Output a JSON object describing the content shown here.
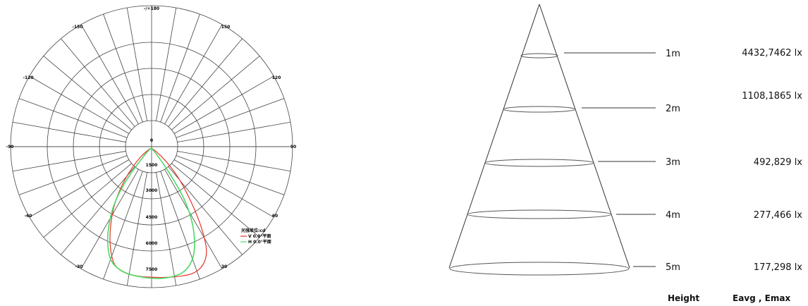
{
  "polar": {
    "top_label": "-/+180",
    "angle_labels": [
      {
        "text": "-150"
      },
      {
        "text": "150"
      },
      {
        "text": "-120"
      },
      {
        "text": "120"
      },
      {
        "text": "-90"
      },
      {
        "text": "90"
      },
      {
        "text": "-60"
      },
      {
        "text": "60"
      },
      {
        "text": "-30"
      },
      {
        "text": "30"
      }
    ],
    "radial_labels": [
      "0",
      "1500",
      "3000",
      "4500",
      "6000",
      "7500"
    ],
    "legend": {
      "title": "光强单位:cd",
      "items": [
        {
          "label": "V 0.0°平面",
          "color": "#e8332a"
        },
        {
          "label": "H 0.0°平面",
          "color": "#4cd964"
        }
      ]
    }
  },
  "cone": {
    "rows": [
      {
        "height": "1m",
        "lux": "4432,7462 lx"
      },
      {
        "height": "2m",
        "lux": "1108,1865 lx"
      },
      {
        "height": "3m",
        "lux": "492,829 lx"
      },
      {
        "height": "4m",
        "lux": "277,466 lx"
      },
      {
        "height": "5m",
        "lux": "177,298 lx"
      }
    ],
    "footer": {
      "height_label": "Height",
      "value_label": "Eavg , Emax"
    }
  }
}
